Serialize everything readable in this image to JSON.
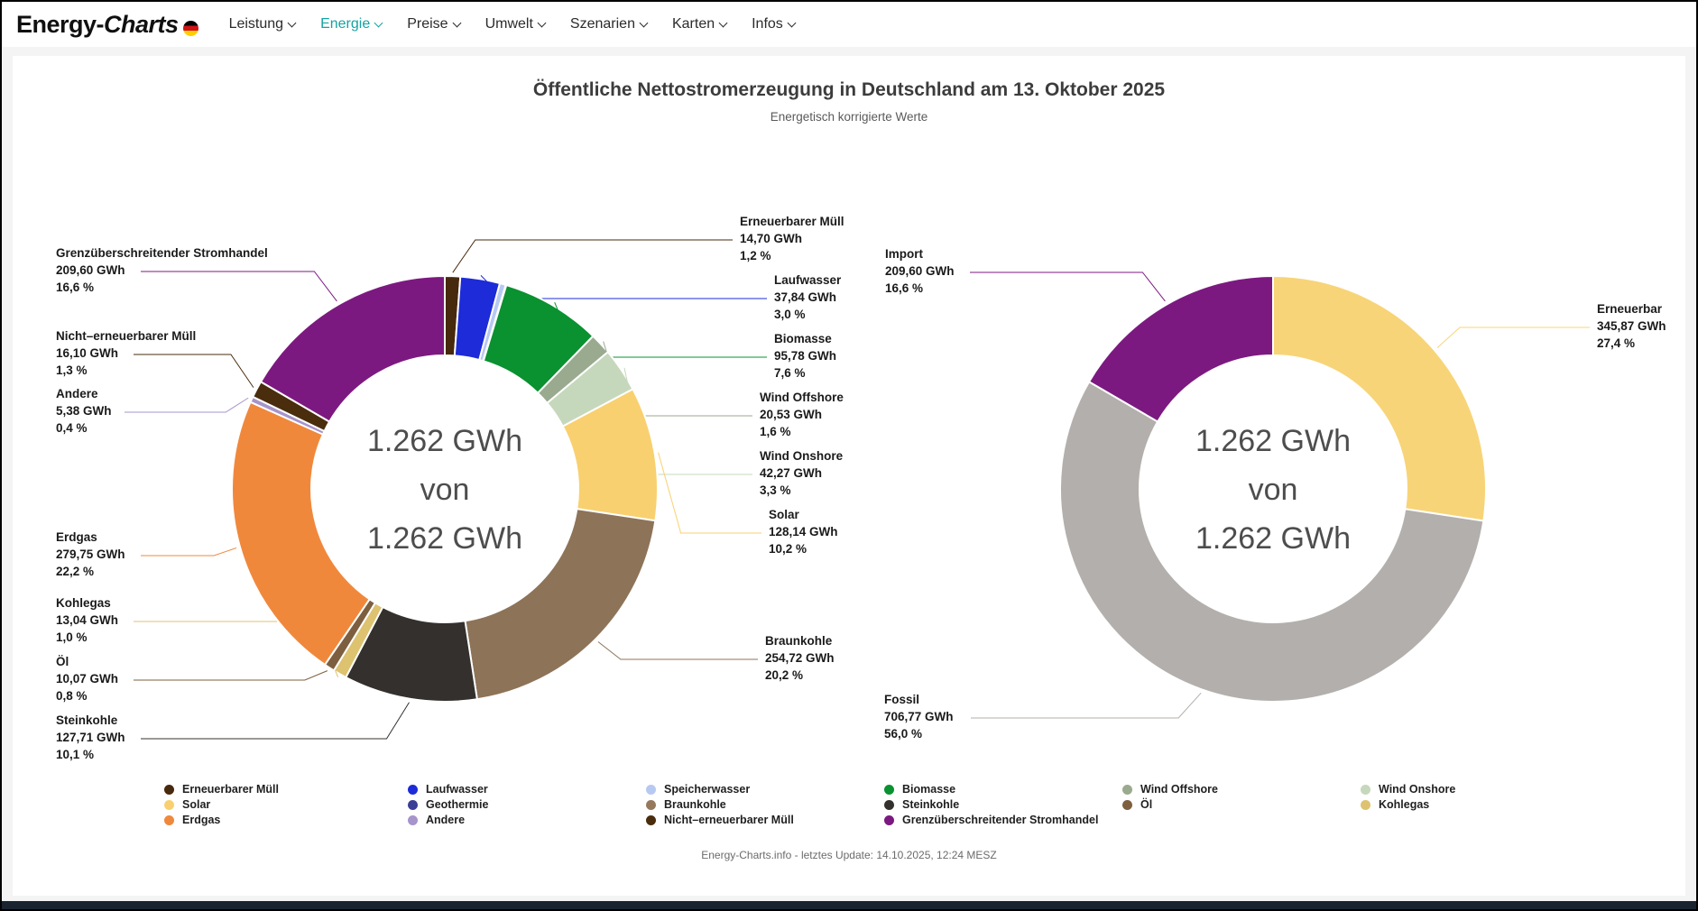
{
  "nav": {
    "logo_bold": "Energy-",
    "logo_italic": "Charts",
    "items": [
      {
        "label": "Leistung",
        "active": false
      },
      {
        "label": "Energie",
        "active": true
      },
      {
        "label": "Preise",
        "active": false
      },
      {
        "label": "Umwelt",
        "active": false
      },
      {
        "label": "Szenarien",
        "active": false
      },
      {
        "label": "Karten",
        "active": false
      },
      {
        "label": "Infos",
        "active": false
      }
    ]
  },
  "page": {
    "title": "Öffentliche Nettostromerzeugung in Deutschland am 13. Oktober 2025",
    "subtitle": "Energetisch korrigierte Werte",
    "footer": "Energy-Charts.info - letztes Update: 14.10.2025, 12:24 MESZ"
  },
  "chart_data": [
    {
      "type": "pie",
      "style": "donut",
      "center_lines": [
        "1.262 GWh",
        "von",
        "1.262 GWh"
      ],
      "total_label": "1.262 GWh",
      "segments": [
        {
          "name": "Erneuerbarer Müll",
          "gwh": 14.7,
          "value_label": "14,70 GWh",
          "pct_label": "1,2 %",
          "color": "#47290d",
          "labeled": true
        },
        {
          "name": "Laufwasser",
          "gwh": 37.84,
          "value_label": "37,84 GWh",
          "pct_label": "3,0 %",
          "color": "#1d2bd8",
          "labeled": true
        },
        {
          "name": "Speicherwasser",
          "gwh": 5.8,
          "value_label": null,
          "pct_label": null,
          "color": "#b7c9f1",
          "labeled": false,
          "estimated": true
        },
        {
          "name": "Geothermie",
          "gwh": 0.6,
          "value_label": null,
          "pct_label": null,
          "color": "#3b3e96",
          "labeled": false,
          "estimated": true
        },
        {
          "name": "Biomasse",
          "gwh": 95.78,
          "value_label": "95,78 GWh",
          "pct_label": "7,6 %",
          "color": "#0a9130",
          "labeled": true
        },
        {
          "name": "Wind Offshore",
          "gwh": 20.53,
          "value_label": "20,53 GWh",
          "pct_label": "1,6 %",
          "color": "#9aaa8f",
          "labeled": true
        },
        {
          "name": "Wind Onshore",
          "gwh": 42.27,
          "value_label": "42,27 GWh",
          "pct_label": "3,3 %",
          "color": "#c6d8bc",
          "labeled": true
        },
        {
          "name": "Solar",
          "gwh": 128.14,
          "value_label": "128,14 GWh",
          "pct_label": "10,2 %",
          "color": "#f9d06f",
          "labeled": true
        },
        {
          "name": "Braunkohle",
          "gwh": 254.72,
          "value_label": "254,72 GWh",
          "pct_label": "20,2 %",
          "color": "#8d7358",
          "labeled": true
        },
        {
          "name": "Steinkohle",
          "gwh": 127.71,
          "value_label": "127,71 GWh",
          "pct_label": "10,1 %",
          "color": "#33302d",
          "labeled": true
        },
        {
          "name": "Kohlegas",
          "gwh": 13.04,
          "value_label": "13,04 GWh",
          "pct_label": "1,0 %",
          "color": "#ddc270",
          "labeled": true
        },
        {
          "name": "Öl",
          "gwh": 10.07,
          "value_label": "10,07 GWh",
          "pct_label": "0,8 %",
          "color": "#7d5f3f",
          "labeled": true
        },
        {
          "name": "Erdgas",
          "gwh": 279.75,
          "value_label": "279,75 GWh",
          "pct_label": "22,2 %",
          "color": "#f0883c",
          "labeled": true
        },
        {
          "name": "Andere",
          "gwh": 5.38,
          "value_label": "5,38 GWh",
          "pct_label": "0,4 %",
          "color": "#a694cb",
          "labeled": true
        },
        {
          "name": "Nicht–erneuerbarer Müll",
          "gwh": 16.1,
          "value_label": "16,10 GWh",
          "pct_label": "1,3 %",
          "color": "#4a2d0d",
          "labeled": true
        },
        {
          "name": "Grenzüberschreitender Stromhandel",
          "gwh": 209.6,
          "value_label": "209,60 GWh",
          "pct_label": "16,6 %",
          "color": "#7c1980",
          "labeled": true
        }
      ]
    },
    {
      "type": "pie",
      "style": "donut",
      "center_lines": [
        "1.262 GWh",
        "von",
        "1.262 GWh"
      ],
      "total_label": "1.262 GWh",
      "segments": [
        {
          "name": "Erneuerbar",
          "gwh": 345.87,
          "value_label": "345,87 GWh",
          "pct_label": "27,4 %",
          "color": "#f8d478",
          "labeled": true
        },
        {
          "name": "Fossil",
          "gwh": 706.77,
          "value_label": "706,77 GWh",
          "pct_label": "56,0 %",
          "color": "#b3afac",
          "labeled": true
        },
        {
          "name": "Import",
          "gwh": 209.6,
          "value_label": "209,60 GWh",
          "pct_label": "16,6 %",
          "color": "#7c1980",
          "labeled": true
        }
      ]
    }
  ],
  "legend": {
    "columns": [
      [
        {
          "label": "Erneuerbarer Müll",
          "color": "#47290d"
        },
        {
          "label": "Solar",
          "color": "#f9d06f"
        },
        {
          "label": "Erdgas",
          "color": "#f0883c"
        }
      ],
      [
        {
          "label": "Laufwasser",
          "color": "#1d2bd8"
        },
        {
          "label": "Geothermie",
          "color": "#3b3e96"
        },
        {
          "label": "Andere",
          "color": "#a694cb"
        }
      ],
      [
        {
          "label": "Speicherwasser",
          "color": "#b7c9f1"
        },
        {
          "label": "Braunkohle",
          "color": "#96795c"
        },
        {
          "label": "Nicht–erneuerbarer Müll",
          "color": "#4a2d0d"
        }
      ],
      [
        {
          "label": "Biomasse",
          "color": "#0a9130"
        },
        {
          "label": "Steinkohle",
          "color": "#33302d"
        },
        {
          "label": "Grenzüberschreitender Stromhandel",
          "color": "#7c1980"
        }
      ],
      [
        {
          "label": "Wind Offshore",
          "color": "#9aaa8f"
        },
        {
          "label": "Öl",
          "color": "#7d5f3f"
        }
      ],
      [
        {
          "label": "Wind Onshore",
          "color": "#c6d8bc"
        },
        {
          "label": "Kohlegas",
          "color": "#ddc270"
        }
      ]
    ]
  }
}
